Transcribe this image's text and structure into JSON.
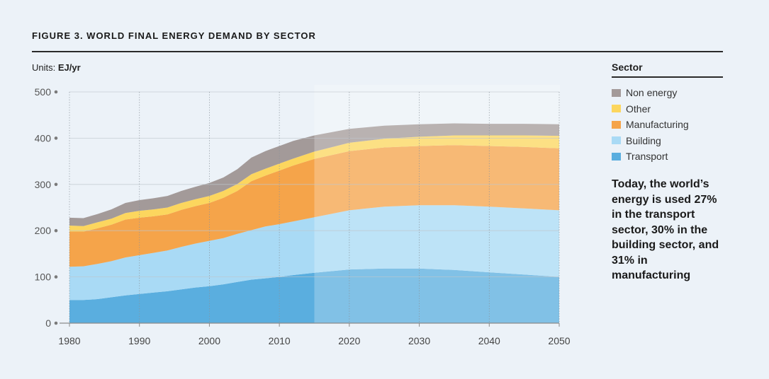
{
  "figure": {
    "title": "FIGURE 3. WORLD FINAL ENERGY DEMAND BY SECTOR",
    "units_label": "Units:",
    "units_value": "EJ/yr"
  },
  "legend": {
    "title": "Sector",
    "items": [
      {
        "label": "Non energy",
        "color": "#a39a99"
      },
      {
        "label": "Other",
        "color": "#fcd65e"
      },
      {
        "label": "Manufacturing",
        "color": "#f5a44a"
      },
      {
        "label": "Building",
        "color": "#a9daf5"
      },
      {
        "label": "Transport",
        "color": "#5aaedf"
      }
    ]
  },
  "note": "Today, the world’s energy is used 27% in the transport sector, 30% in the building sector, and 31% in manufacturing",
  "chart_data": {
    "type": "area",
    "stacked": true,
    "ylim": [
      0,
      500
    ],
    "xlim": [
      1980,
      2050
    ],
    "yticks": [
      0,
      100,
      200,
      300,
      400,
      500
    ],
    "xticks": [
      1980,
      1990,
      2000,
      2010,
      2020,
      2030,
      2040,
      2050
    ],
    "x": [
      1980,
      1982,
      1984,
      1986,
      1988,
      1990,
      1992,
      1994,
      1996,
      1998,
      2000,
      2002,
      2004,
      2006,
      2008,
      2010,
      2012,
      2015,
      2020,
      2025,
      2030,
      2035,
      2040,
      2045,
      2050
    ],
    "forecast_from": 2015,
    "series": [
      {
        "name": "Transport",
        "color": "#5aaedf",
        "values": [
          50,
          50,
          52,
          56,
          60,
          63,
          66,
          69,
          73,
          77,
          80,
          84,
          89,
          94,
          97,
          100,
          104,
          109,
          116,
          118,
          118,
          115,
          110,
          105,
          100
        ]
      },
      {
        "name": "Building",
        "color": "#a9daf5",
        "values": [
          72,
          73,
          76,
          78,
          82,
          84,
          86,
          88,
          92,
          95,
          98,
          100,
          104,
          107,
          112,
          114,
          116,
          120,
          128,
          134,
          137,
          140,
          142,
          143,
          144
        ]
      },
      {
        "name": "Manufacturing",
        "color": "#f5a44a",
        "values": [
          76,
          75,
          77,
          79,
          82,
          81,
          79,
          78,
          80,
          81,
          82,
          87,
          93,
          106,
          110,
          116,
          121,
          126,
          128,
          128,
          128,
          130,
          131,
          133,
          134
        ]
      },
      {
        "name": "Other",
        "color": "#fcd65e",
        "values": [
          13,
          12,
          13,
          13,
          14,
          15,
          15,
          15,
          15,
          15,
          15,
          15,
          15,
          15,
          15,
          15,
          15,
          16,
          18,
          19,
          20,
          21,
          23,
          25,
          27
        ]
      },
      {
        "name": "Non energy",
        "color": "#a39a99",
        "values": [
          17,
          17,
          18,
          20,
          22,
          23,
          24,
          25,
          26,
          27,
          28,
          29,
          32,
          36,
          38,
          38,
          38,
          35,
          30,
          28,
          27,
          26,
          25,
          25,
          25
        ]
      }
    ]
  }
}
